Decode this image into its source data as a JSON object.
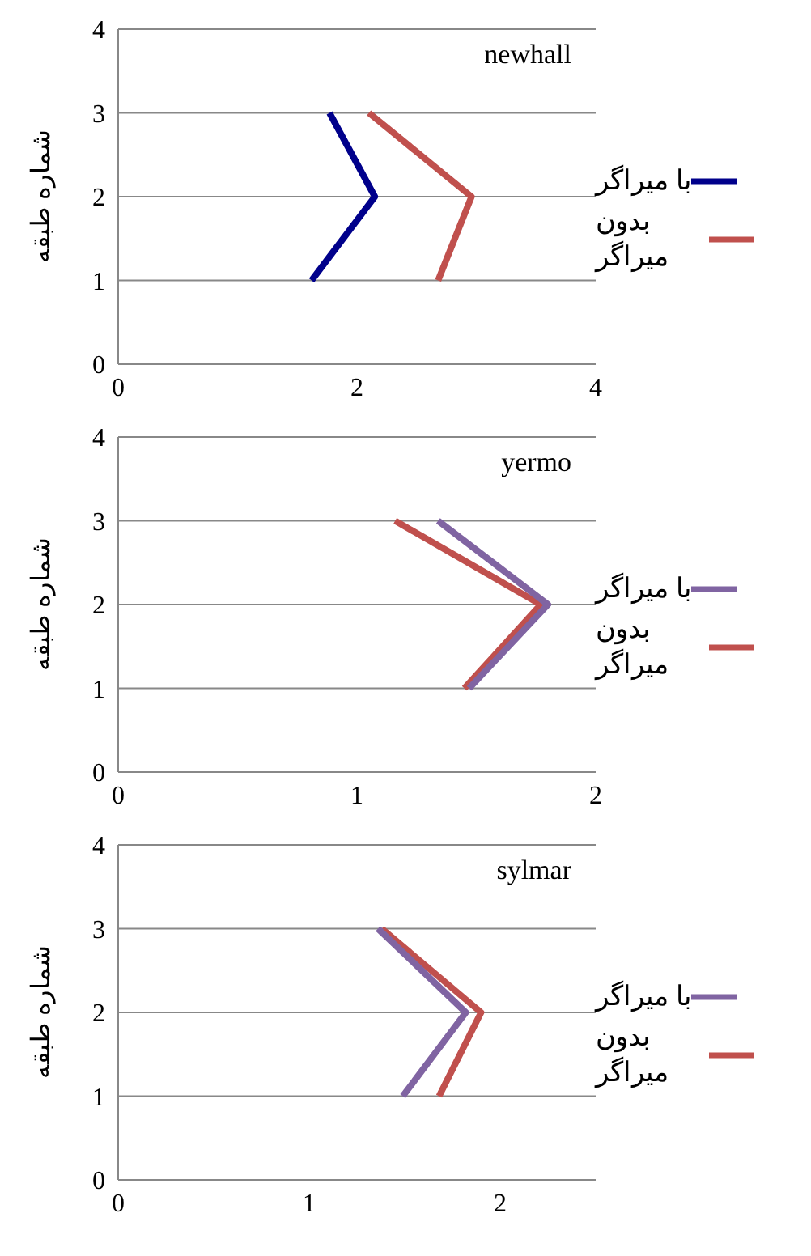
{
  "chart_data": [
    {
      "type": "line",
      "title": "newhall",
      "ylabel": "شماره طبقه",
      "xlim": [
        0,
        4
      ],
      "xticks": [
        0,
        2,
        4
      ],
      "ylim": [
        0,
        4
      ],
      "yticks": [
        0,
        1,
        2,
        3,
        4
      ],
      "grid": "y",
      "legend": "right",
      "marker": "none",
      "series": [
        {
          "name": "بدون میراگر",
          "color": "#c0504d",
          "x": [
            2.68,
            2.96,
            2.1
          ],
          "values": [
            1,
            2,
            3
          ]
        },
        {
          "name": "با میراگر",
          "color": "#00008b",
          "x": [
            1.62,
            2.15,
            1.77
          ],
          "values": [
            1,
            2,
            3
          ]
        }
      ]
    },
    {
      "type": "line",
      "title": "yermo",
      "ylabel": "شماره طبقه",
      "xlim": [
        0,
        2
      ],
      "xticks": [
        0,
        1,
        2
      ],
      "ylim": [
        0,
        4
      ],
      "yticks": [
        0,
        1,
        2,
        3,
        4
      ],
      "grid": "y",
      "legend": "right",
      "marker": "none",
      "series": [
        {
          "name": "بدون میراگر",
          "color": "#c0504d",
          "x": [
            1.45,
            1.77,
            1.16
          ],
          "values": [
            1,
            2,
            3
          ]
        },
        {
          "name": "با میراگر",
          "color": "#8064a2",
          "x": [
            1.47,
            1.8,
            1.34
          ],
          "values": [
            1,
            2,
            3
          ]
        }
      ]
    },
    {
      "type": "line",
      "title": "sylmar",
      "ylabel": "شماره طبقه",
      "xlim": [
        0,
        2.5
      ],
      "xticks": [
        0,
        1,
        2
      ],
      "ylim": [
        0,
        4
      ],
      "yticks": [
        0,
        1,
        2,
        3,
        4
      ],
      "grid": "y",
      "legend": "right",
      "marker": "none",
      "series": [
        {
          "name": "بدون میراگر",
          "color": "#c0504d",
          "x": [
            1.68,
            1.9,
            1.38
          ],
          "values": [
            1,
            2,
            3
          ]
        },
        {
          "name": "با میراگر",
          "color": "#8064a2",
          "x": [
            1.49,
            1.82,
            1.36
          ],
          "values": [
            1,
            2,
            3
          ]
        }
      ]
    }
  ]
}
